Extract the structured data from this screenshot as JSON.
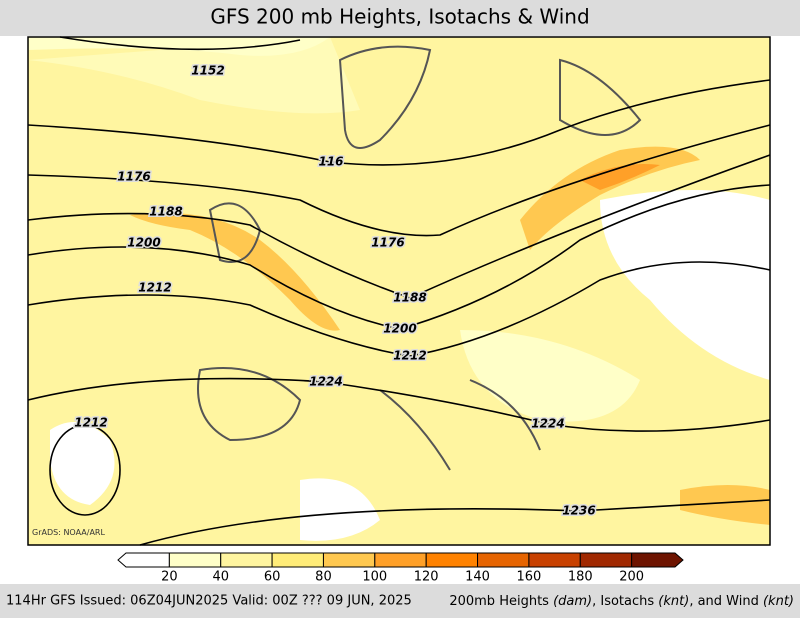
{
  "title": "GFS 200 mb Heights, Isotachs & Wind",
  "credit": "GrADS: NOAA/ARL",
  "contour_labels": [
    "1152",
    "116",
    "1176",
    "1188",
    "1200",
    "1176",
    "1212",
    "1188",
    "1200",
    "1212",
    "1224",
    "1224",
    "1212",
    "1236"
  ],
  "colorbar": {
    "levels": [
      20,
      40,
      60,
      80,
      100,
      120,
      140,
      160,
      180,
      200
    ],
    "colors": [
      "#ffffff",
      "#ffffc8",
      "#fff5a0",
      "#ffec78",
      "#ffc850",
      "#ffa028",
      "#ff8200",
      "#e66400",
      "#c84100",
      "#a02800",
      "#6e1400"
    ]
  },
  "footer_left": "114Hr GFS Issued: 06Z04JUN2025 Valid: 00Z ??? 09 JUN, 2025",
  "footer_right": [
    {
      "text": "200mb Heights ",
      "italic": false
    },
    {
      "text": "(dam)",
      "italic": true
    },
    {
      "text": ", Isotachs ",
      "italic": false
    },
    {
      "text": "(knt)",
      "italic": true
    },
    {
      "text": ", and Wind ",
      "italic": false
    },
    {
      "text": "(knt)",
      "italic": true
    }
  ]
}
